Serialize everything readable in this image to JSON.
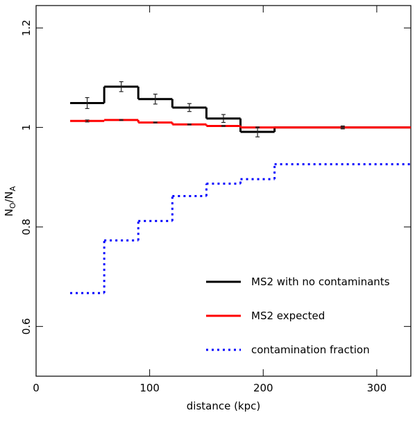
{
  "chart_data": {
    "type": "step",
    "x_label": "distance (kpc)",
    "y_label_parts": [
      "N",
      "O",
      "/N",
      "A"
    ],
    "xlim": [
      0,
      330
    ],
    "ylim": [
      0.5,
      1.245
    ],
    "xticks": [
      0,
      100,
      200,
      300
    ],
    "yticks": [
      0.6,
      0.8,
      1,
      1.2
    ],
    "x_edges": [
      30,
      60,
      90,
      120,
      150,
      180,
      210,
      330
    ],
    "legend": "lower right",
    "series": [
      {
        "name": "MS2 with no contaminants",
        "color": "#000000",
        "style": "solid",
        "values": [
          1.049,
          1.082,
          1.057,
          1.04,
          1.018,
          0.991,
          1.0
        ],
        "errors": [
          0.011,
          0.01,
          0.01,
          0.008,
          0.008,
          0.01,
          0.003
        ]
      },
      {
        "name": "MS2 expected",
        "color": "#ff0000",
        "style": "solid",
        "values": [
          1.013,
          1.015,
          1.01,
          1.006,
          1.003,
          1.0,
          1.0
        ],
        "errors": [
          0.002,
          0.001,
          0.001,
          0.001,
          0.001,
          0.001,
          0.001
        ]
      },
      {
        "name": "contamination fraction",
        "color": "#0000ff",
        "style": "dotted",
        "values": [
          0.667,
          0.773,
          0.812,
          0.862,
          0.887,
          0.896,
          0.926
        ]
      }
    ]
  }
}
